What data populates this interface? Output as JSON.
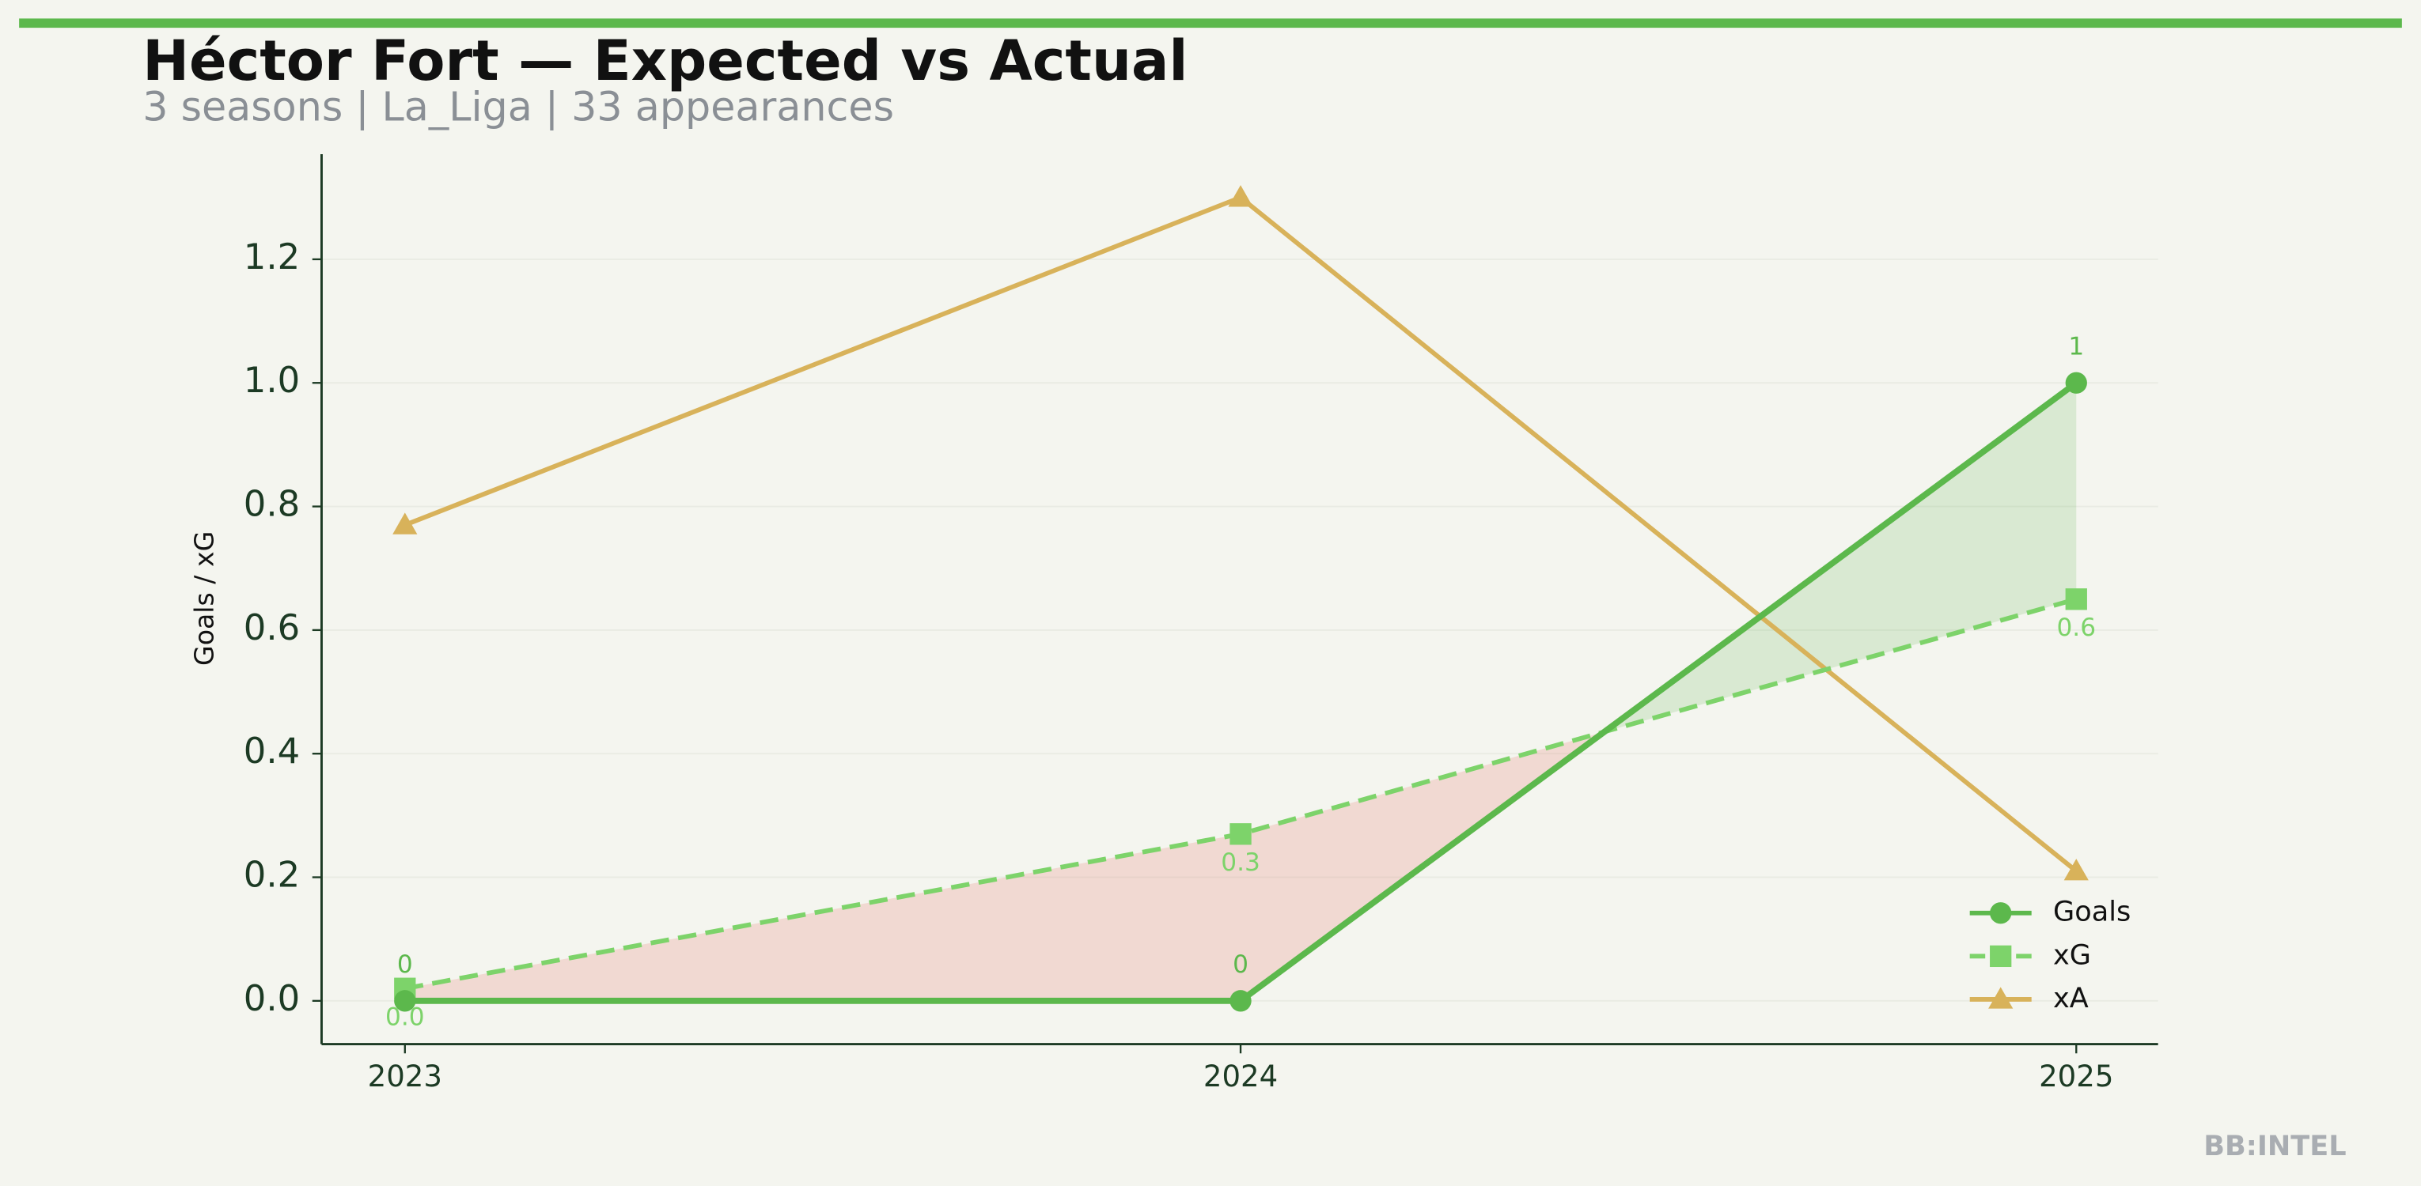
{
  "chart_data": {
    "type": "line",
    "title": "Héctor Fort — Expected vs Actual",
    "subtitle": "3 seasons | La_Liga | 33 appearances",
    "y_label": "Goals / xG",
    "watermark": "BB:INTEL",
    "categories": [
      "2023",
      "2024",
      "2025"
    ],
    "series": [
      {
        "name": "Goals",
        "color": "#5cb84c",
        "marker": "circle",
        "linestyle": "solid",
        "values": [
          0,
          0,
          1
        ],
        "value_labels": [
          "0",
          "0",
          "1"
        ]
      },
      {
        "name": "xG",
        "color": "#7dd36a",
        "marker": "square",
        "linestyle": "dashed",
        "values": [
          0.02,
          0.27,
          0.65
        ],
        "value_labels": [
          "0.0",
          "0.3",
          "0.6"
        ]
      },
      {
        "name": "xA",
        "color": "#d8b25a",
        "marker": "triangle",
        "linestyle": "solid",
        "values": [
          0.77,
          1.3,
          0.21
        ]
      }
    ],
    "ylim": [
      -0.07,
      1.37
    ],
    "yticks": [
      {
        "value": 0,
        "label": "0.0"
      },
      0.2,
      0.4,
      0.6,
      0.8,
      {
        "value": 1,
        "label": "1.0"
      },
      1.2
    ],
    "grid": true,
    "legend": "lower right",
    "fill_colors": {
      "above": "#5cb84c",
      "below": "#e8877a"
    }
  }
}
